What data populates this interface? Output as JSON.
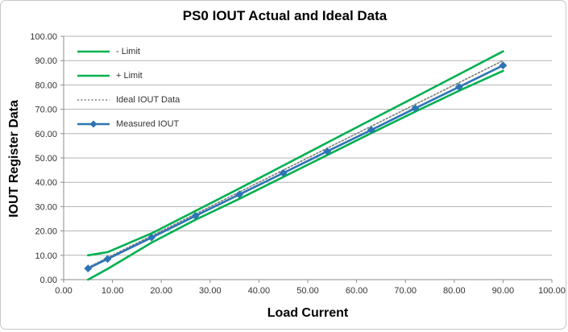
{
  "chart": {
    "title": "PS0 IOUT Actual and Ideal Data",
    "x_axis_title": "Load Current",
    "y_axis_title": "IOUT Register Data"
  },
  "chart_data": {
    "type": "line",
    "title": "PS0 IOUT Actual and Ideal Data",
    "xlabel": "Load Current",
    "ylabel": "IOUT Register Data",
    "xlim": [
      0,
      100
    ],
    "ylim": [
      0,
      100
    ],
    "x_tick_labels": [
      "0.00",
      "10.00",
      "20.00",
      "30.00",
      "40.00",
      "50.00",
      "60.00",
      "70.00",
      "80.00",
      "90.00",
      "100.00"
    ],
    "y_tick_labels": [
      "0.00",
      "10.00",
      "20.00",
      "30.00",
      "40.00",
      "50.00",
      "60.00",
      "70.00",
      "80.00",
      "90.00",
      "100.00"
    ],
    "grid": "horizontal",
    "legend_position": "inside-top-left",
    "x": [
      5,
      9,
      18,
      27,
      36,
      45,
      54,
      63,
      72,
      81,
      90
    ],
    "series": [
      {
        "name": "- Limit",
        "color": "#00B050",
        "style": "solid",
        "marker": "none",
        "values": [
          0.0,
          4.4,
          15.2,
          24.6,
          33.2,
          42.2,
          51.2,
          60.2,
          69.0,
          77.6,
          85.8
        ]
      },
      {
        "name": "+ Limit",
        "color": "#00B050",
        "style": "solid",
        "marker": "none",
        "values": [
          10.0,
          11.3,
          19.0,
          28.2,
          37.5,
          46.9,
          56.3,
          65.7,
          75.0,
          84.4,
          93.8
        ]
      },
      {
        "name": "Ideal IOUT Data",
        "color": "#7F7F7F",
        "style": "dotted",
        "marker": "none",
        "values": [
          5,
          9,
          18,
          27,
          36,
          45,
          54,
          63,
          72,
          81,
          90
        ]
      },
      {
        "name": "Measured IOUT",
        "color": "#2E74B5",
        "style": "solid",
        "marker": "diamond",
        "values": [
          4.6,
          8.5,
          17.3,
          26.2,
          35.0,
          43.8,
          52.7,
          61.5,
          70.4,
          79.2,
          88.0
        ]
      }
    ]
  },
  "colors": {
    "gridline": "#b3b3b3",
    "axis": "#8c8c8c",
    "tick_label": "#333333",
    "frame_border": "#c9c7c5",
    "background": "#ffffff"
  }
}
